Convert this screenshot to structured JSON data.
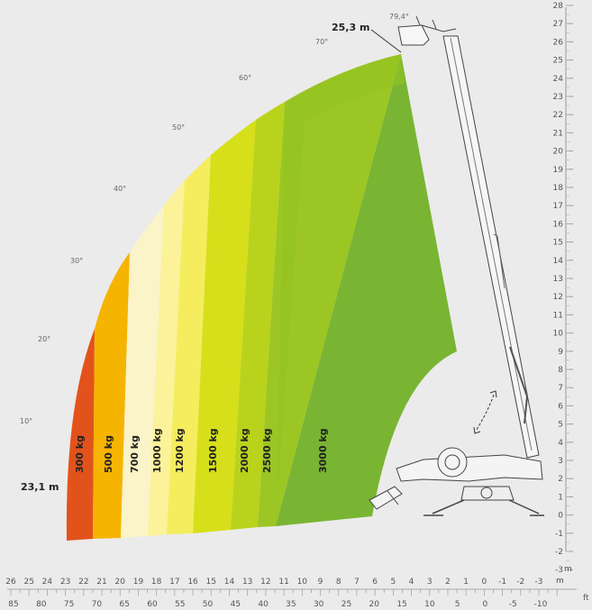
{
  "diagram": {
    "max_height_label": "25,3 m",
    "max_reach_label": "23,1 m",
    "max_angle_label": "79,4°",
    "angle_labels": [
      "70°",
      "60°",
      "50°",
      "40°",
      "30°",
      "20°",
      "10°"
    ],
    "load_zones": [
      {
        "label": "300 kg",
        "color": "#e2531c"
      },
      {
        "label": "500 kg",
        "color": "#f5b400"
      },
      {
        "label": "700 kg",
        "color": "#fbf4c8"
      },
      {
        "label": "1000 kg",
        "color": "#fbf29a"
      },
      {
        "label": "1200 kg",
        "color": "#f5ed5e"
      },
      {
        "label": "1500 kg",
        "color": "#d6df1a"
      },
      {
        "label": "2000 kg",
        "color": "#b9d31c"
      },
      {
        "label": "2500 kg",
        "color": "#9cc624"
      },
      {
        "label": "3000 kg",
        "color": "#79b532"
      }
    ],
    "right_axis": {
      "unit": "m",
      "labels": [
        "28",
        "27",
        "26",
        "25",
        "24",
        "23",
        "22",
        "21",
        "20",
        "19",
        "18",
        "17",
        "16",
        "15",
        "14",
        "13",
        "12",
        "11",
        "10",
        "9",
        "8",
        "7",
        "6",
        "5",
        "4",
        "3",
        "2",
        "1",
        "0",
        "-1",
        "-2",
        "-3"
      ]
    },
    "bottom_axis_m": {
      "unit": "m",
      "labels": [
        "26",
        "25",
        "24",
        "23",
        "22",
        "21",
        "20",
        "19",
        "18",
        "17",
        "16",
        "15",
        "14",
        "13",
        "12",
        "11",
        "10",
        "9",
        "8",
        "7",
        "6",
        "5",
        "4",
        "3",
        "2",
        "1",
        "0",
        "-1",
        "-2",
        "-3"
      ]
    },
    "bottom_axis_ft": {
      "unit": "ft",
      "labels": [
        "85",
        "80",
        "75",
        "70",
        "65",
        "60",
        "55",
        "50",
        "45",
        "40",
        "35",
        "30",
        "25",
        "20",
        "15",
        "10",
        "5",
        "0",
        "-5",
        "-10"
      ]
    }
  }
}
